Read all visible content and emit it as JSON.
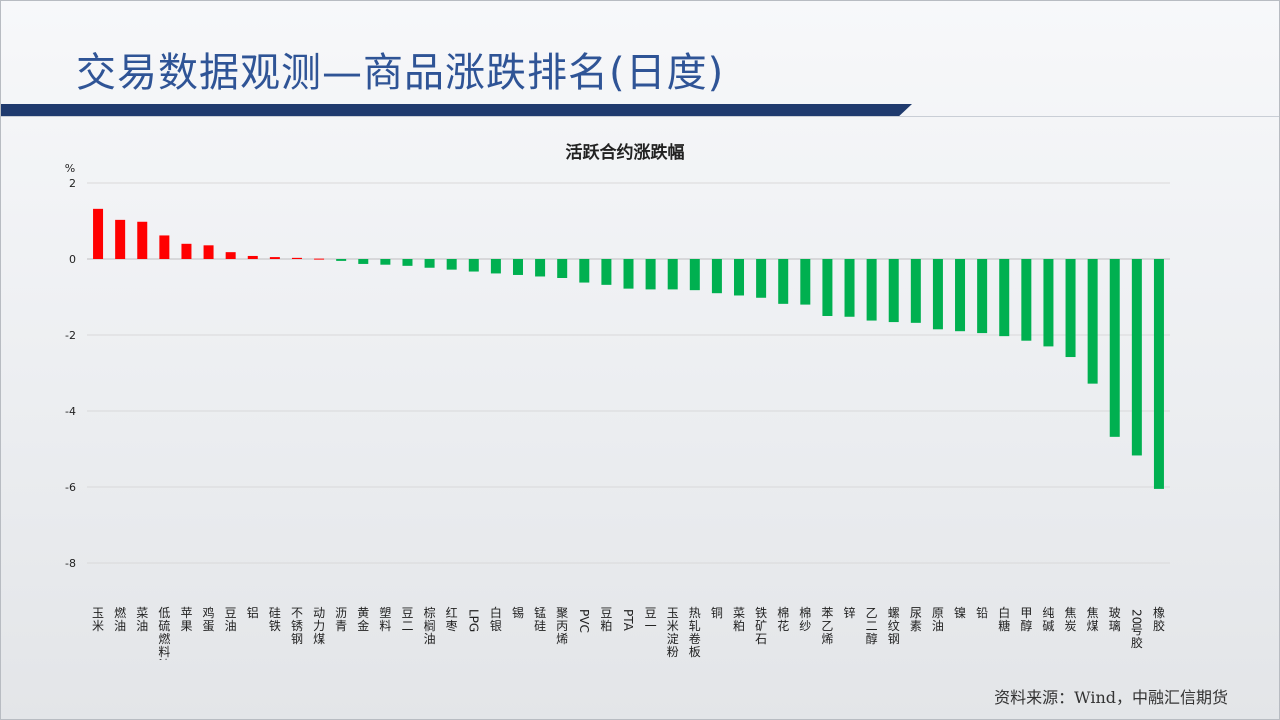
{
  "slide": {
    "title": "交易数据观测—商品涨跌排名(日度)",
    "source": "资料来源：Wind，中融汇信期货"
  },
  "colors": {
    "up": "#ff0000",
    "down": "#00b050",
    "title": "#2f5496",
    "bar_band": "#1f3a6e"
  },
  "chart_data": {
    "type": "bar",
    "title": "活跃合约涨跌幅",
    "ylabel": "%",
    "ylim": [
      -8,
      2
    ],
    "yticks": [
      2,
      0,
      -2,
      -4,
      -6,
      -8
    ],
    "grid": true,
    "categories": [
      "玉米",
      "燃油",
      "菜油",
      "低硫燃料油",
      "苹果",
      "鸡蛋",
      "豆油",
      "铝",
      "硅铁",
      "不锈钢",
      "动力煤",
      "沥青",
      "黄金",
      "塑料",
      "豆二",
      "棕榈油",
      "红枣",
      "LPG",
      "白银",
      "锡",
      "锰硅",
      "聚丙烯",
      "PVC",
      "豆粕",
      "PTA",
      "豆一",
      "玉米淀粉",
      "热轧卷板",
      "铜",
      "菜粕",
      "铁矿石",
      "棉花",
      "棉纱",
      "苯乙烯",
      "锌",
      "乙二醇",
      "螺纹钢",
      "尿素",
      "原油",
      "镍",
      "铅",
      "白糖",
      "甲醇",
      "纯碱",
      "焦炭",
      "焦煤",
      "玻璃",
      "20号胶",
      "橡胶"
    ],
    "values": [
      1.32,
      1.03,
      0.98,
      0.62,
      0.4,
      0.36,
      0.18,
      0.08,
      0.05,
      0.03,
      0.01,
      -0.05,
      -0.13,
      -0.15,
      -0.18,
      -0.23,
      -0.28,
      -0.33,
      -0.38,
      -0.42,
      -0.46,
      -0.5,
      -0.62,
      -0.68,
      -0.78,
      -0.8,
      -0.8,
      -0.82,
      -0.9,
      -0.96,
      -1.02,
      -1.18,
      -1.2,
      -1.5,
      -1.52,
      -1.62,
      -1.66,
      -1.68,
      -1.85,
      -1.9,
      -1.95,
      -2.03,
      -2.15,
      -2.3,
      -2.58,
      -3.28,
      -4.68,
      -5.17,
      -6.05
    ]
  }
}
